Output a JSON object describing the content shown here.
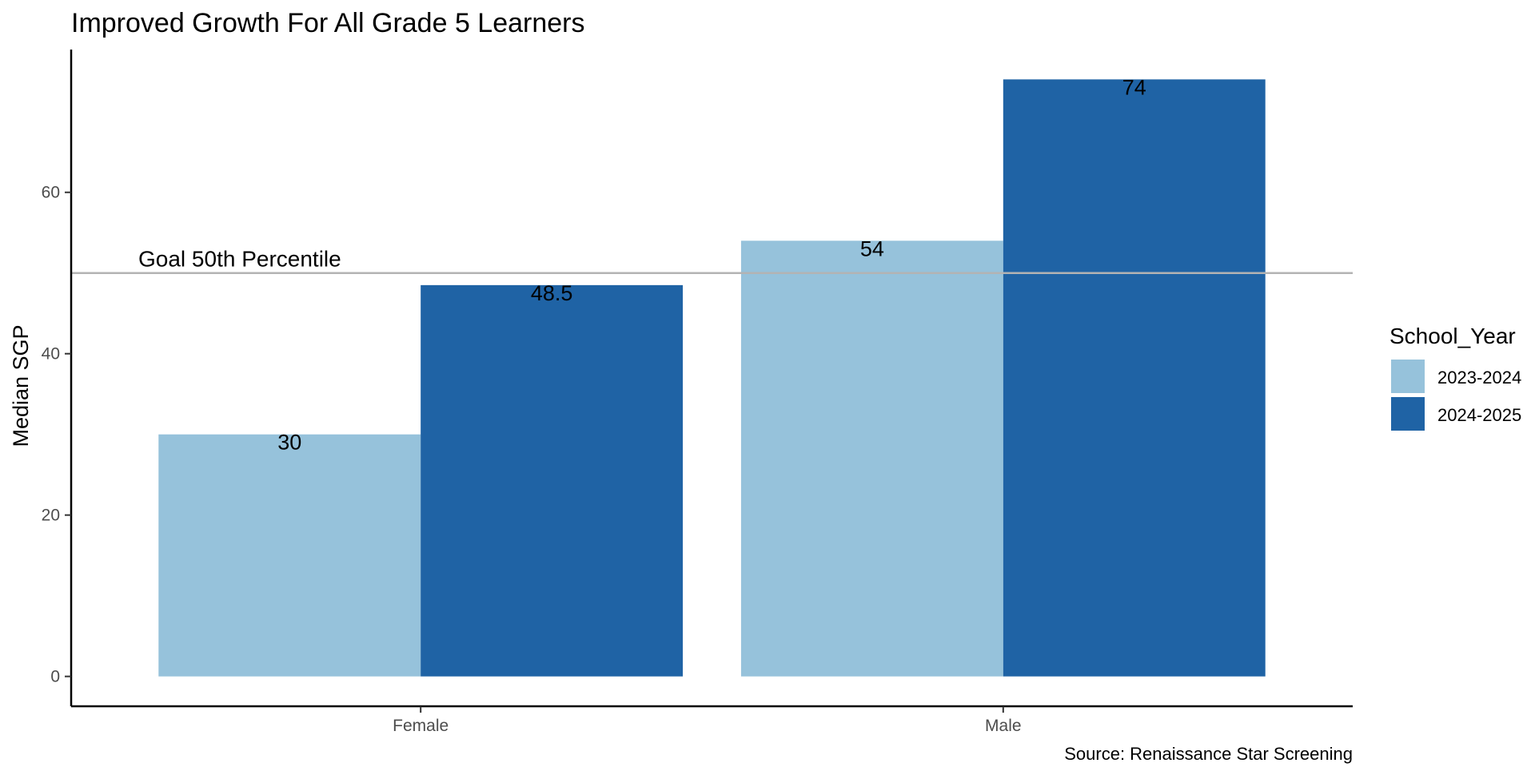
{
  "chart_data": {
    "type": "bar",
    "title": "Improved Growth For All Grade 5 Learners",
    "xlabel": "",
    "ylabel": "Median SGP",
    "categories": [
      "Female",
      "Male"
    ],
    "series": [
      {
        "name": "2023-2024",
        "values": [
          30,
          54
        ],
        "color": "#96c2db",
        "labels": [
          "30",
          "54"
        ]
      },
      {
        "name": "2024-2025",
        "values": [
          48.5,
          74
        ],
        "color": "#1f63a5",
        "labels": [
          "48.5",
          "74"
        ]
      }
    ],
    "ylim": [
      -3.7,
      77.7
    ],
    "yticks": [
      0,
      20,
      40,
      60
    ],
    "ytick_labels": [
      "0",
      "20",
      "40",
      "60"
    ],
    "reference_line": {
      "value": 50,
      "label": "Goal 50th Percentile",
      "color": "#b3b3b3"
    },
    "legend": {
      "title": "School_Year",
      "position": "right"
    },
    "caption": "Source: Renaissance Star Screening",
    "grid": false
  }
}
